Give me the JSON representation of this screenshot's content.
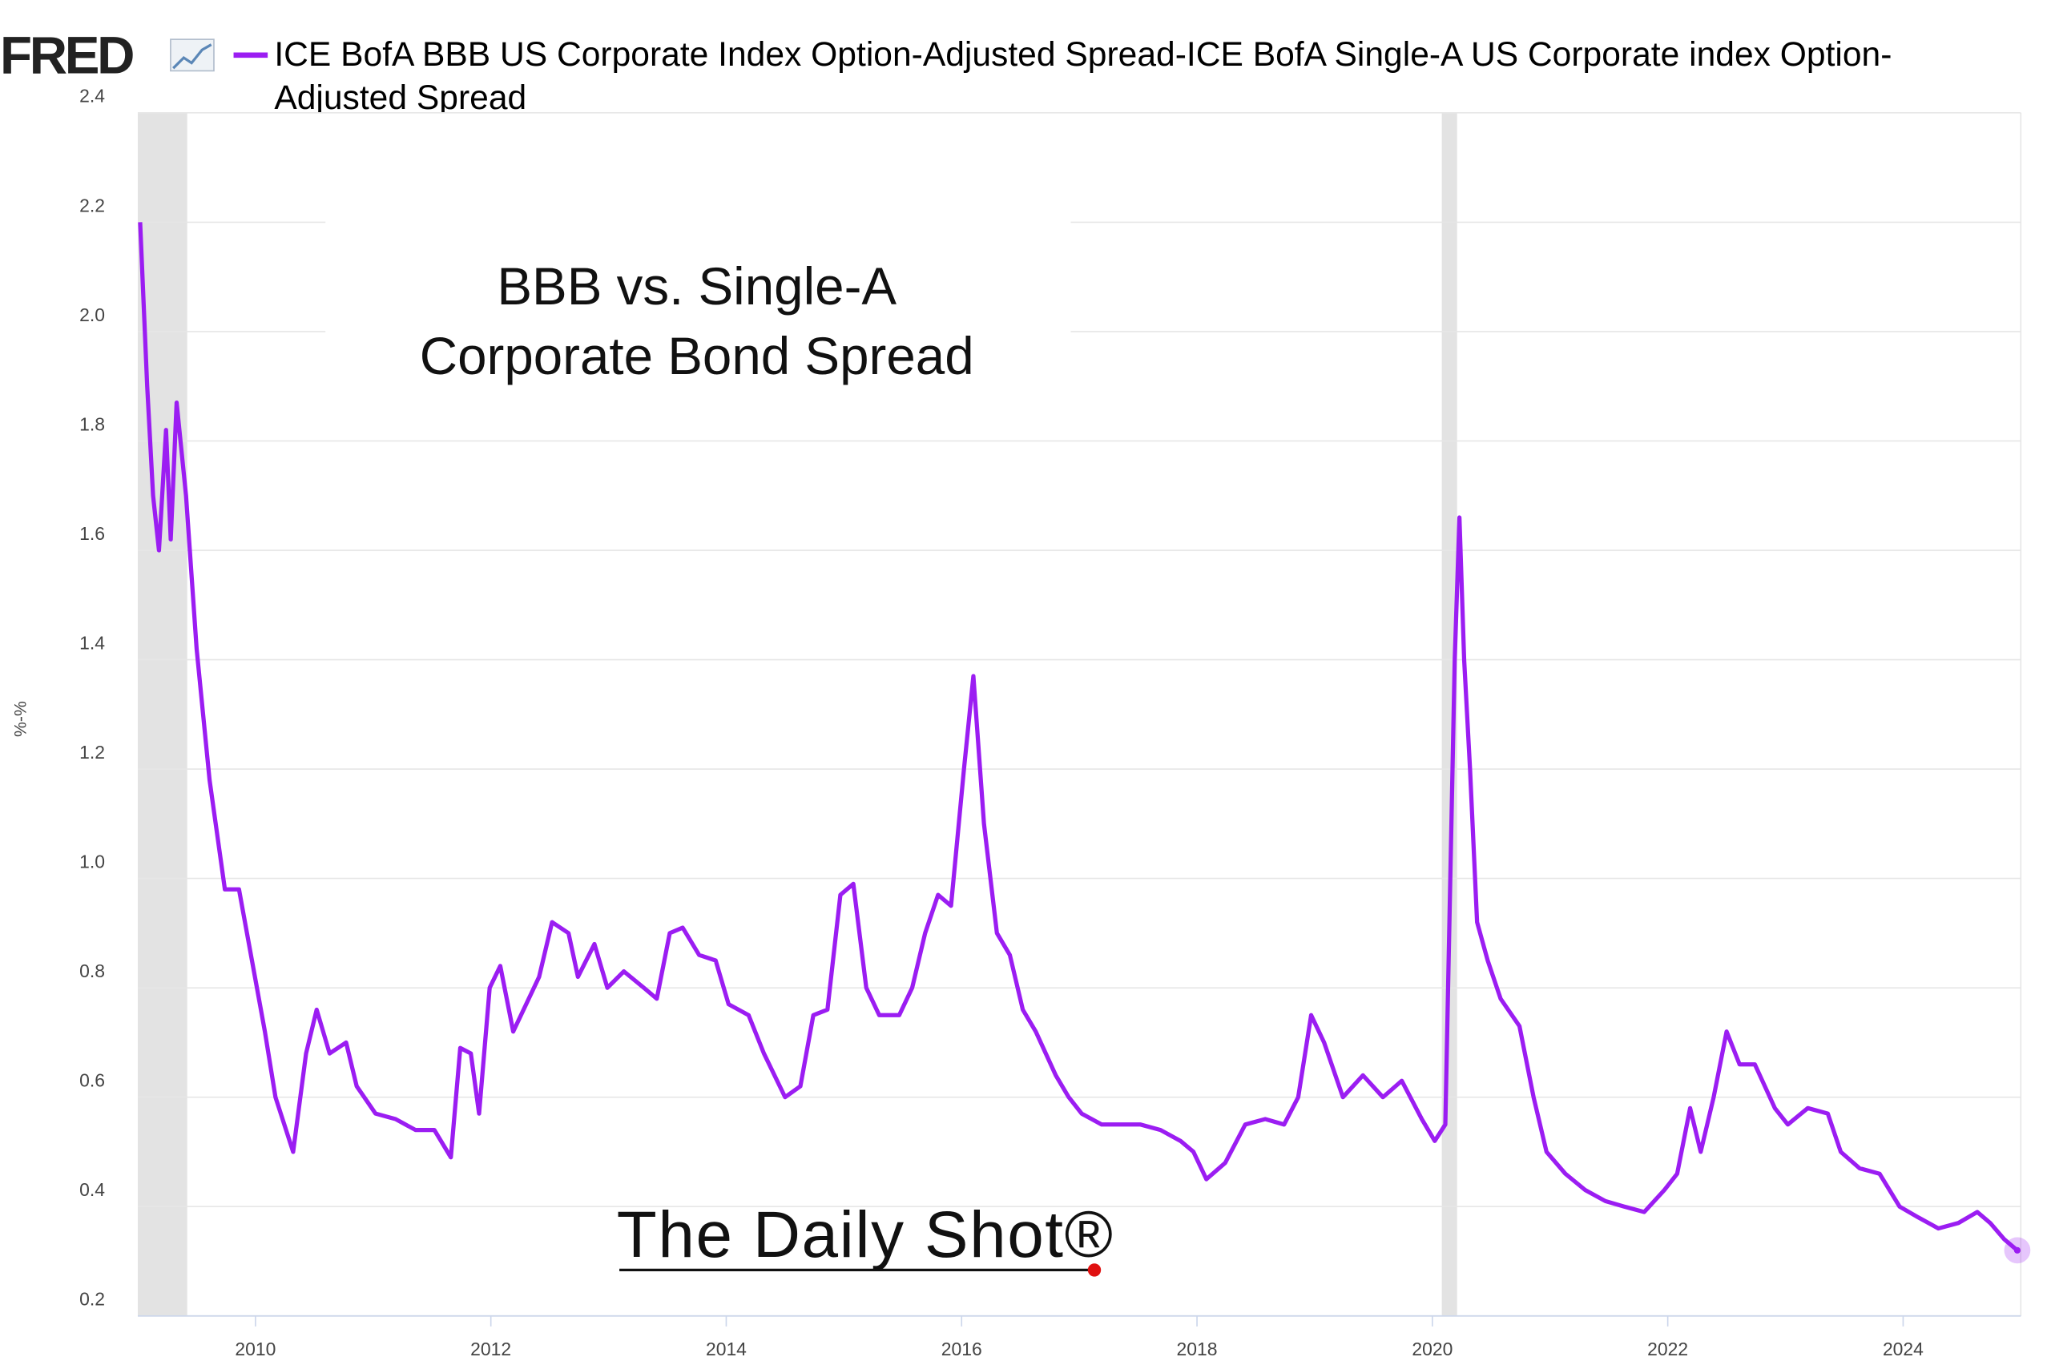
{
  "chart_data": {
    "type": "line",
    "logo": "FRED",
    "ylabel": "%-%",
    "annotation": [
      "BBB vs. Single-A",
      "Corporate Bond Spread"
    ],
    "watermark": "The Daily Shot®",
    "xlim": [
      2009,
      2025
    ],
    "xticks": [
      2010,
      2012,
      2014,
      2016,
      2018,
      2020,
      2022,
      2024
    ],
    "ylim": [
      0.2,
      2.4
    ],
    "yticks": [
      0.2,
      0.4,
      0.6,
      0.8,
      {
        "value": 1,
        "label": "1.0"
      },
      1.2,
      1.4,
      1.6,
      1.8,
      {
        "value": 2,
        "label": "2.0"
      },
      2.2,
      2.4
    ],
    "grid": true,
    "recessions": [
      [
        2009,
        2009.42
      ],
      [
        2020.08,
        2020.21
      ]
    ],
    "series": [
      {
        "name": "ICE BofA BBB US Corporate Index Option-Adjusted Spread-ICE BofA Single-A US Corporate index Option-Adjusted Spread",
        "color": "#9b1df2",
        "x": [
          2009.02,
          2009.08,
          2009.13,
          2009.18,
          2009.24,
          2009.28,
          2009.33,
          2009.41,
          2009.5,
          2009.61,
          2009.74,
          2009.86,
          2009.97,
          2010.08,
          2010.17,
          2010.32,
          2010.43,
          2010.52,
          2010.63,
          2010.77,
          2010.86,
          2011.02,
          2011.19,
          2011.36,
          2011.52,
          2011.66,
          2011.74,
          2011.83,
          2011.9,
          2011.99,
          2012.08,
          2012.19,
          2012.3,
          2012.41,
          2012.52,
          2012.66,
          2012.74,
          2012.88,
          2012.99,
          2013.13,
          2013.3,
          2013.41,
          2013.52,
          2013.63,
          2013.77,
          2013.91,
          2014.02,
          2014.19,
          2014.32,
          2014.5,
          2014.63,
          2014.74,
          2014.86,
          2014.97,
          2015.08,
          2015.19,
          2015.3,
          2015.47,
          2015.58,
          2015.69,
          2015.8,
          2015.91,
          2016.02,
          2016.1,
          2016.19,
          2016.3,
          2016.41,
          2016.52,
          2016.63,
          2016.8,
          2016.91,
          2017.02,
          2017.19,
          2017.36,
          2017.52,
          2017.69,
          2017.86,
          2017.97,
          2018.08,
          2018.24,
          2018.41,
          2018.58,
          2018.74,
          2018.86,
          2018.97,
          2019.08,
          2019.24,
          2019.41,
          2019.58,
          2019.74,
          2019.91,
          2020.02,
          2020.11,
          2020.19,
          2020.23,
          2020.27,
          2020.32,
          2020.38,
          2020.47,
          2020.58,
          2020.74,
          2020.86,
          2020.97,
          2021.13,
          2021.3,
          2021.47,
          2021.63,
          2021.8,
          2021.97,
          2022.08,
          2022.19,
          2022.28,
          2022.39,
          2022.5,
          2022.61,
          2022.74,
          2022.91,
          2023.02,
          2023.19,
          2023.36,
          2023.47,
          2023.63,
          2023.8,
          2023.97,
          2024.13,
          2024.3,
          2024.47,
          2024.63,
          2024.74,
          2024.86,
          2024.97
        ],
        "values": [
          2.2,
          1.9,
          1.7,
          1.6,
          1.82,
          1.62,
          1.87,
          1.7,
          1.42,
          1.18,
          0.98,
          0.98,
          0.85,
          0.72,
          0.6,
          0.5,
          0.68,
          0.76,
          0.68,
          0.7,
          0.62,
          0.57,
          0.56,
          0.54,
          0.54,
          0.49,
          0.69,
          0.68,
          0.57,
          0.8,
          0.84,
          0.72,
          0.77,
          0.82,
          0.92,
          0.9,
          0.82,
          0.88,
          0.8,
          0.83,
          0.8,
          0.78,
          0.9,
          0.91,
          0.86,
          0.85,
          0.77,
          0.75,
          0.68,
          0.6,
          0.62,
          0.75,
          0.76,
          0.97,
          0.99,
          0.8,
          0.75,
          0.75,
          0.8,
          0.9,
          0.97,
          0.95,
          1.2,
          1.37,
          1.1,
          0.9,
          0.86,
          0.76,
          0.72,
          0.64,
          0.6,
          0.57,
          0.55,
          0.55,
          0.55,
          0.54,
          0.52,
          0.5,
          0.45,
          0.48,
          0.55,
          0.56,
          0.55,
          0.6,
          0.75,
          0.7,
          0.6,
          0.64,
          0.6,
          0.63,
          0.56,
          0.52,
          0.55,
          1.4,
          1.66,
          1.4,
          1.2,
          0.92,
          0.85,
          0.78,
          0.73,
          0.6,
          0.5,
          0.46,
          0.43,
          0.41,
          0.4,
          0.39,
          0.43,
          0.46,
          0.58,
          0.5,
          0.6,
          0.72,
          0.66,
          0.66,
          0.58,
          0.55,
          0.58,
          0.57,
          0.5,
          0.47,
          0.46,
          0.4,
          0.38,
          0.36,
          0.37,
          0.39,
          0.37,
          0.34,
          0.32
        ]
      }
    ]
  }
}
